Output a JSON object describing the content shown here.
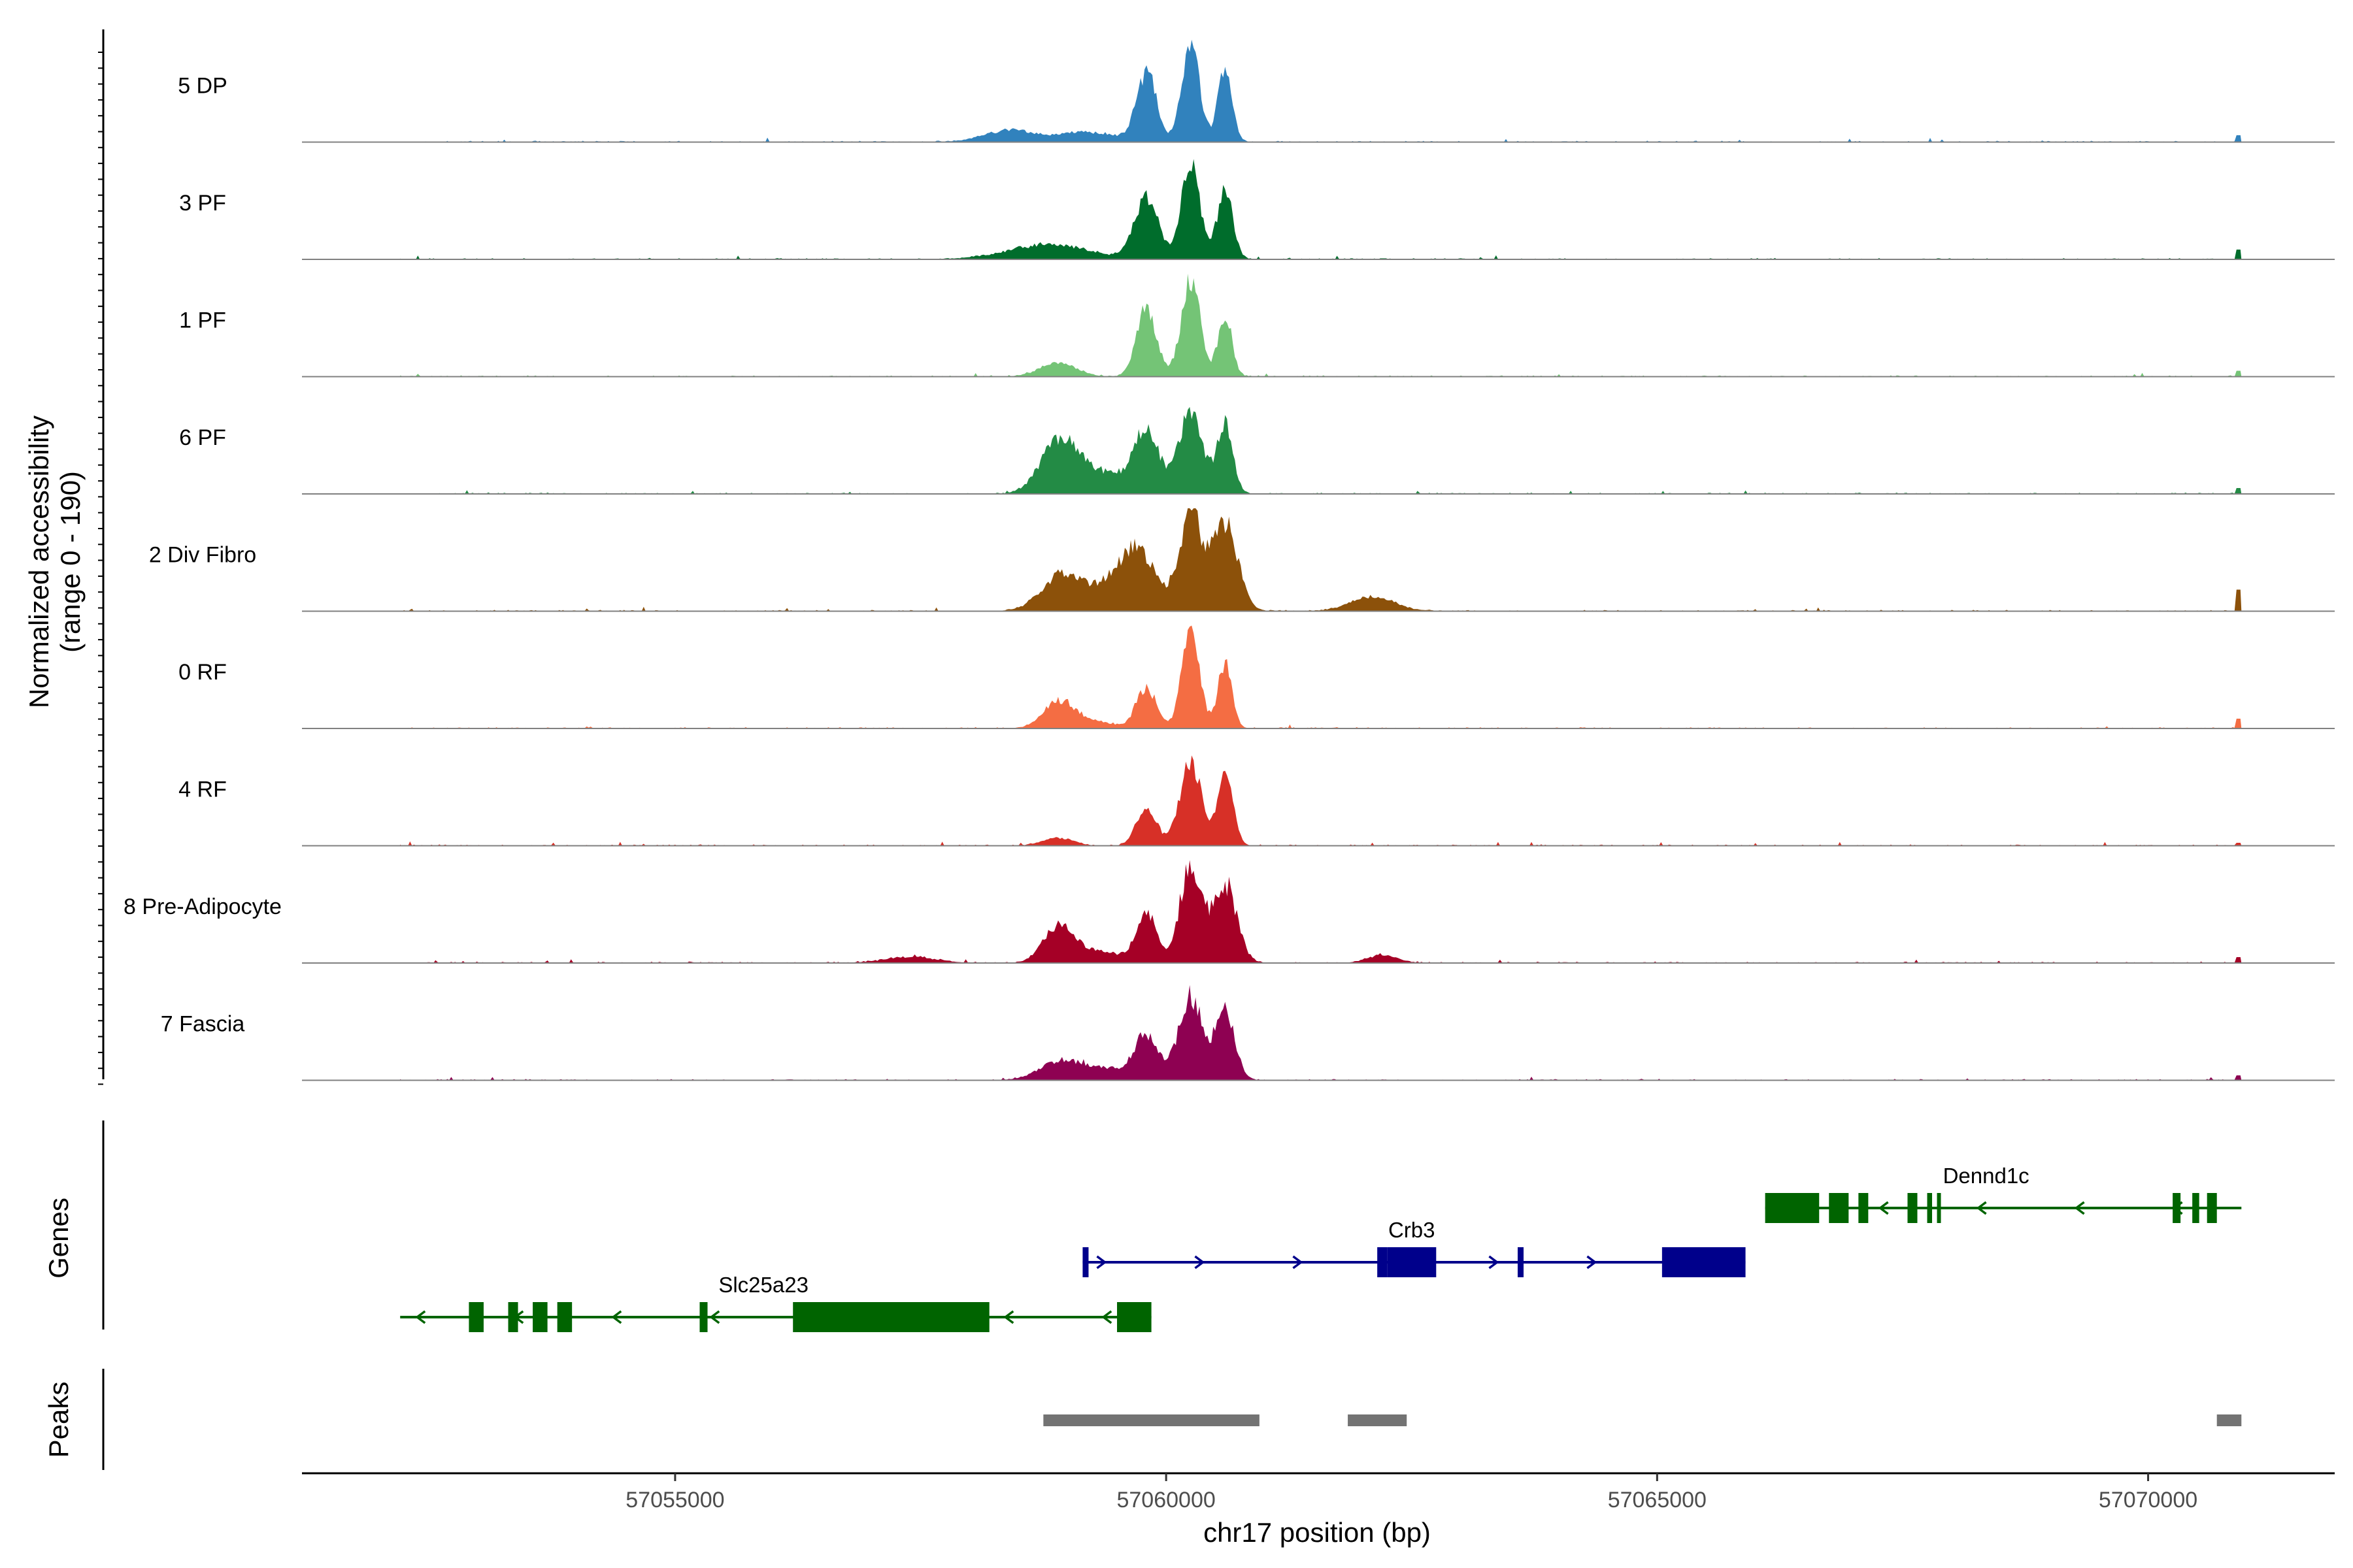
{
  "chart_data": {
    "type": "area",
    "title": "",
    "ylabel": "Normalized accessibility\n(range 0 - 190)",
    "y_range_text": "(range 0 - 190)",
    "ylabel_line1": "Normalized accessibility",
    "xlabel": "chr17 position (bp)",
    "xlim": [
      57051200,
      57071900
    ],
    "ylim": [
      0,
      190
    ],
    "x_ticks": [
      57055000,
      57060000,
      57065000,
      57070000
    ],
    "x_tick_labels": [
      "57055000",
      "57060000",
      "57065000",
      "57070000"
    ],
    "panel_labels": {
      "genes": "Genes",
      "peaks": "Peaks"
    },
    "series": [
      {
        "name": "5 DP",
        "color": "#3182bd",
        "peaks": [
          [
            57059800,
            0.7,
            100
          ],
          [
            57060250,
            1.0,
            90
          ],
          [
            57060600,
            0.78,
            70
          ],
          [
            57058400,
            0.12,
            250
          ],
          [
            57059200,
            0.1,
            300
          ]
        ],
        "end_spike": 0.07
      },
      {
        "name": "3 PF",
        "color": "#006d2c",
        "peaks": [
          [
            57059800,
            0.62,
            120
          ],
          [
            57060250,
            1.0,
            90
          ],
          [
            57060600,
            0.7,
            80
          ],
          [
            57058800,
            0.15,
            400
          ]
        ],
        "end_spike": 0.1
      },
      {
        "name": "1 PF",
        "color": "#74c476",
        "peaks": [
          [
            57059800,
            0.7,
            100
          ],
          [
            57060250,
            1.0,
            95
          ],
          [
            57060600,
            0.62,
            70
          ],
          [
            57058900,
            0.14,
            180
          ]
        ],
        "end_spike": 0.06
      },
      {
        "name": "6 PF",
        "color": "#238b45",
        "peaks": [
          [
            57058900,
            0.48,
            180
          ],
          [
            57059800,
            0.6,
            130
          ],
          [
            57060250,
            0.82,
            120
          ],
          [
            57060600,
            0.72,
            80
          ],
          [
            57059300,
            0.22,
            300
          ]
        ],
        "end_spike": 0.06
      },
      {
        "name": "2 Div Fibro",
        "color": "#8c510a",
        "peaks": [
          [
            57058900,
            0.25,
            180
          ],
          [
            57059700,
            0.6,
            200
          ],
          [
            57060250,
            1.0,
            110
          ],
          [
            57060600,
            0.9,
            130
          ],
          [
            57062100,
            0.15,
            220
          ],
          [
            57059200,
            0.2,
            300
          ]
        ],
        "end_spike": 0.22
      },
      {
        "name": "0 RF",
        "color": "#f46d43",
        "peaks": [
          [
            57058900,
            0.25,
            150
          ],
          [
            57059800,
            0.42,
            100
          ],
          [
            57060250,
            1.0,
            90
          ],
          [
            57060600,
            0.68,
            70
          ],
          [
            57059200,
            0.08,
            250
          ]
        ],
        "end_spike": 0.1
      },
      {
        "name": "4 RF",
        "color": "#d73027",
        "peaks": [
          [
            57059800,
            0.4,
            100
          ],
          [
            57060250,
            0.85,
            110
          ],
          [
            57060600,
            0.72,
            80
          ],
          [
            57058900,
            0.08,
            150
          ]
        ],
        "end_spike": 0.03
      },
      {
        "name": "8 Pre-Adipocyte",
        "color": "#a50026",
        "peaks": [
          [
            57058900,
            0.35,
            150
          ],
          [
            57059800,
            0.5,
            100
          ],
          [
            57060250,
            1.0,
            110
          ],
          [
            57060600,
            0.8,
            120
          ],
          [
            57059300,
            0.12,
            250
          ],
          [
            57062200,
            0.08,
            150
          ],
          [
            57057400,
            0.06,
            250
          ]
        ],
        "end_spike": 0.06
      },
      {
        "name": "7 Fascia",
        "color": "#8e0152",
        "peaks": [
          [
            57058900,
            0.15,
            200
          ],
          [
            57059800,
            0.45,
            120
          ],
          [
            57060250,
            0.85,
            120
          ],
          [
            57060600,
            0.7,
            100
          ],
          [
            57059300,
            0.12,
            300
          ]
        ],
        "end_spike": 0.05
      }
    ],
    "genes": [
      {
        "name": "Slc25a23",
        "strand": "-",
        "color": "#006400",
        "start": 57052200,
        "end": 57059850,
        "row": 3,
        "exons": [
          [
            57052900,
            57053050
          ],
          [
            57053300,
            57053400
          ],
          [
            57053550,
            57053700
          ],
          [
            57053800,
            57053950
          ],
          [
            57055250,
            57055330
          ],
          [
            57056200,
            57058200
          ],
          [
            57059500,
            57059850
          ]
        ],
        "label_x": 57055900
      },
      {
        "name": "Crb3",
        "strand": "+",
        "color": "#00008b",
        "start": 57059150,
        "end": 57065900,
        "row": 2,
        "exons": [
          [
            57059150,
            57059210
          ],
          [
            57062150,
            57062250
          ],
          [
            57062250,
            57062750
          ],
          [
            57063580,
            57063640
          ],
          [
            57065050,
            57065900
          ]
        ],
        "label_x": 57062500
      },
      {
        "name": "Dennd1c",
        "strand": "-",
        "color": "#006400",
        "start": 57066100,
        "end": 57070950,
        "row": 1,
        "exons": [
          [
            57066100,
            57066650
          ],
          [
            57066750,
            57066950
          ],
          [
            57067050,
            57067150
          ],
          [
            57067550,
            57067650
          ],
          [
            57067750,
            57067800
          ],
          [
            57067850,
            57067880
          ],
          [
            57070250,
            57070330
          ],
          [
            57070450,
            57070520
          ],
          [
            57070600,
            57070700
          ]
        ],
        "label_x": 57068350
      }
    ],
    "peak_regions": [
      [
        57058750,
        57060950
      ],
      [
        57061850,
        57062450
      ],
      [
        57070700,
        57070950
      ]
    ]
  }
}
